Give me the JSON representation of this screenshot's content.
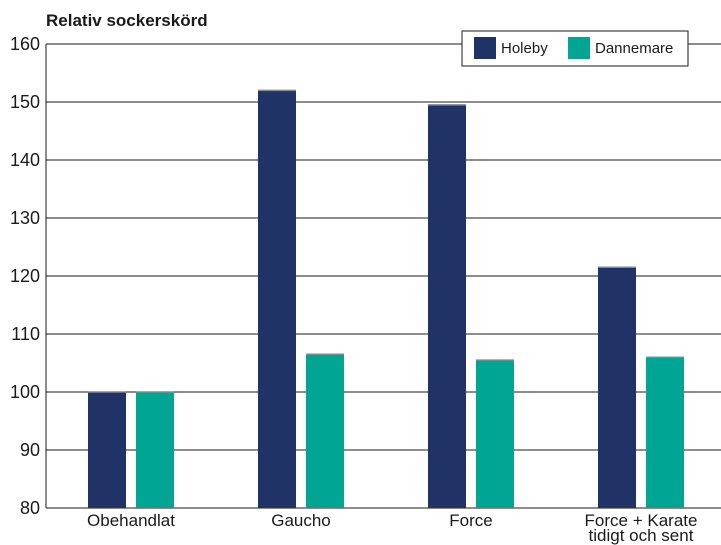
{
  "chart_data": {
    "type": "bar",
    "ylabel": "Relativ sockerskörd",
    "categories": [
      [
        "Obehandlat"
      ],
      [
        "Gaucho"
      ],
      [
        "Force"
      ],
      [
        "Force + Karate",
        "tidigt och sent"
      ]
    ],
    "series": [
      {
        "name": "Holeby",
        "color": "#1f3366",
        "values": [
          100,
          152,
          149.5,
          121.5
        ]
      },
      {
        "name": "Dannemare",
        "color": "#00a693",
        "values": [
          100,
          106.5,
          105.5,
          106
        ]
      }
    ],
    "ylim": [
      80,
      160
    ],
    "yticks": [
      80,
      90,
      100,
      110,
      120,
      130,
      140,
      150,
      160
    ],
    "grid": true,
    "legend": "top-right"
  }
}
